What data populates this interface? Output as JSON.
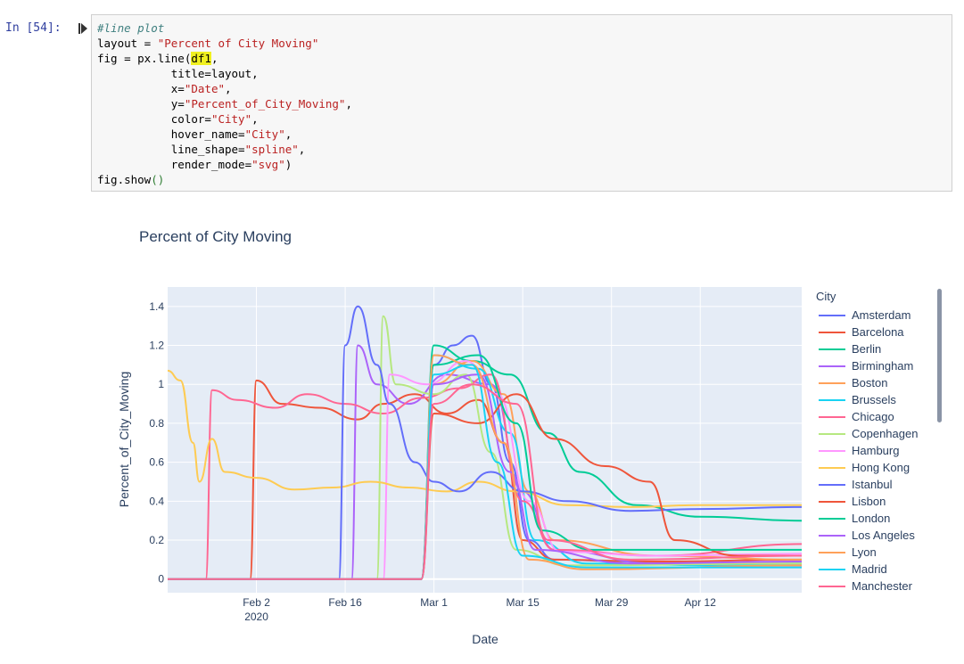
{
  "notebook": {
    "prompt": "In [54]:",
    "code": {
      "comment": "#line plot",
      "layout_var": "layout = ",
      "layout_str": "\"Percent of City Moving\"",
      "fig_prefix": "fig = px.line(",
      "df_name": "df1",
      "fig_suffix": ",",
      "l_title": "           title=layout,",
      "l_x_pre": "           x=",
      "l_x_val": "\"Date\"",
      "l_x_end": ",",
      "l_y_pre": "           y=",
      "l_y_val": "\"Percent_of_City_Moving\"",
      "l_y_end": ",",
      "l_color_pre": "           color=",
      "l_color_val": "\"City\"",
      "l_color_end": ",",
      "l_hover_pre": "           hover_name=",
      "l_hover_val": "\"City\"",
      "l_hover_end": ",",
      "l_shape_pre": "           line_shape=",
      "l_shape_val": "\"spline\"",
      "l_shape_end": ",",
      "l_render_pre": "           render_mode=",
      "l_render_val": "\"svg\"",
      "l_render_end": ")",
      "show_pre": "fig.show",
      "show_par": "()"
    }
  },
  "chart_data": {
    "type": "line",
    "title": "Percent of City Moving",
    "xlabel": "Date",
    "ylabel": "Percent_of_City_Moving",
    "ylim": [
      -0.07,
      1.5
    ],
    "y_ticks": [
      {
        "value": 0,
        "label": "0"
      },
      {
        "value": 0.2,
        "label": "0.2"
      },
      {
        "value": 0.4,
        "label": "0.4"
      },
      {
        "value": 0.6,
        "label": "0.6"
      },
      {
        "value": 0.8,
        "label": "0.8"
      },
      {
        "value": 1,
        "label": "1"
      },
      {
        "value": 1.2,
        "label": "1.2"
      },
      {
        "value": 1.4,
        "label": "1.4"
      }
    ],
    "x_start": "2020-01-19",
    "x_end": "2020-04-28",
    "x_ticks": [
      {
        "date": "2020-02-02",
        "label": "Feb 2",
        "sub": "2020"
      },
      {
        "date": "2020-02-16",
        "label": "Feb 16",
        "sub": ""
      },
      {
        "date": "2020-03-01",
        "label": "Mar 1",
        "sub": ""
      },
      {
        "date": "2020-03-15",
        "label": "Mar 15",
        "sub": ""
      },
      {
        "date": "2020-03-29",
        "label": "Mar 29",
        "sub": ""
      },
      {
        "date": "2020-04-12",
        "label": "Apr 12",
        "sub": ""
      }
    ],
    "legend_title": "City",
    "legend_position": "right",
    "series": [
      {
        "name": "Amsterdam",
        "color": "#636efa",
        "points": [
          [
            "2020-01-19",
            0
          ],
          [
            "2020-02-28",
            0
          ],
          [
            "2020-03-01",
            1.1
          ],
          [
            "2020-03-04",
            1.2
          ],
          [
            "2020-03-07",
            1.25
          ],
          [
            "2020-03-10",
            1.0
          ],
          [
            "2020-03-13",
            0.6
          ],
          [
            "2020-03-16",
            0.2
          ],
          [
            "2020-03-20",
            0.1
          ],
          [
            "2020-04-01",
            0.09
          ],
          [
            "2020-04-15",
            0.08
          ],
          [
            "2020-04-28",
            0.08
          ]
        ]
      },
      {
        "name": "Barcelona",
        "color": "#ef553b",
        "points": [
          [
            "2020-01-19",
            0
          ],
          [
            "2020-02-01",
            0
          ],
          [
            "2020-02-02",
            1.02
          ],
          [
            "2020-02-06",
            0.9
          ],
          [
            "2020-02-12",
            0.88
          ],
          [
            "2020-02-18",
            0.82
          ],
          [
            "2020-02-22",
            0.9
          ],
          [
            "2020-02-27",
            0.95
          ],
          [
            "2020-03-03",
            0.85
          ],
          [
            "2020-03-08",
            0.92
          ],
          [
            "2020-03-12",
            0.7
          ],
          [
            "2020-03-15",
            0.2
          ],
          [
            "2020-03-20",
            0.1
          ],
          [
            "2020-04-05",
            0.09
          ],
          [
            "2020-04-28",
            0.1
          ]
        ]
      },
      {
        "name": "Berlin",
        "color": "#00cc96",
        "points": [
          [
            "2020-01-19",
            0
          ],
          [
            "2020-02-28",
            0
          ],
          [
            "2020-03-01",
            1.2
          ],
          [
            "2020-03-07",
            1.12
          ],
          [
            "2020-03-13",
            1.05
          ],
          [
            "2020-03-19",
            0.75
          ],
          [
            "2020-03-24",
            0.55
          ],
          [
            "2020-04-02",
            0.38
          ],
          [
            "2020-04-12",
            0.32
          ],
          [
            "2020-04-28",
            0.3
          ]
        ]
      },
      {
        "name": "Birmingham",
        "color": "#ab63fa",
        "points": [
          [
            "2020-01-19",
            0
          ],
          [
            "2020-02-17",
            0
          ],
          [
            "2020-02-18",
            1.2
          ],
          [
            "2020-02-21",
            1.0
          ],
          [
            "2020-02-26",
            0.9
          ],
          [
            "2020-03-03",
            1.05
          ],
          [
            "2020-03-10",
            1.0
          ],
          [
            "2020-03-15",
            0.45
          ],
          [
            "2020-03-20",
            0.15
          ],
          [
            "2020-04-05",
            0.08
          ],
          [
            "2020-04-28",
            0.07
          ]
        ]
      },
      {
        "name": "Boston",
        "color": "#ffa15a",
        "points": [
          [
            "2020-01-19",
            0
          ],
          [
            "2020-02-28",
            0
          ],
          [
            "2020-03-01",
            1.0
          ],
          [
            "2020-03-07",
            1.12
          ],
          [
            "2020-03-12",
            0.95
          ],
          [
            "2020-03-16",
            0.45
          ],
          [
            "2020-03-20",
            0.2
          ],
          [
            "2020-04-05",
            0.12
          ],
          [
            "2020-04-28",
            0.1
          ]
        ]
      },
      {
        "name": "Brussels",
        "color": "#19d3f3",
        "points": [
          [
            "2020-01-19",
            0
          ],
          [
            "2020-02-28",
            0
          ],
          [
            "2020-03-01",
            1.15
          ],
          [
            "2020-03-08",
            1.08
          ],
          [
            "2020-03-13",
            0.75
          ],
          [
            "2020-03-17",
            0.2
          ],
          [
            "2020-03-25",
            0.08
          ],
          [
            "2020-04-15",
            0.07
          ],
          [
            "2020-04-28",
            0.08
          ]
        ]
      },
      {
        "name": "Chicago",
        "color": "#ff6692",
        "points": [
          [
            "2020-01-19",
            0
          ],
          [
            "2020-01-25",
            0
          ],
          [
            "2020-01-26",
            0.97
          ],
          [
            "2020-01-30",
            0.92
          ],
          [
            "2020-02-05",
            0.88
          ],
          [
            "2020-02-10",
            0.95
          ],
          [
            "2020-02-16",
            0.9
          ],
          [
            "2020-02-22",
            0.85
          ],
          [
            "2020-02-28",
            0.93
          ],
          [
            "2020-03-05",
            0.98
          ],
          [
            "2020-03-10",
            1.05
          ],
          [
            "2020-03-15",
            0.4
          ],
          [
            "2020-03-20",
            0.15
          ],
          [
            "2020-04-05",
            0.12
          ],
          [
            "2020-04-28",
            0.18
          ]
        ]
      },
      {
        "name": "Copenhagen",
        "color": "#b6e880",
        "points": [
          [
            "2020-01-19",
            0
          ],
          [
            "2020-02-21",
            0
          ],
          [
            "2020-02-22",
            1.35
          ],
          [
            "2020-02-24",
            1.0
          ],
          [
            "2020-03-01",
            0.95
          ],
          [
            "2020-03-06",
            1.05
          ],
          [
            "2020-03-10",
            0.65
          ],
          [
            "2020-03-14",
            0.15
          ],
          [
            "2020-03-22",
            0.07
          ],
          [
            "2020-04-28",
            0.08
          ]
        ]
      },
      {
        "name": "Hamburg",
        "color": "#ff97ff",
        "points": [
          [
            "2020-01-19",
            0
          ],
          [
            "2020-02-22",
            0
          ],
          [
            "2020-02-23",
            1.05
          ],
          [
            "2020-02-29",
            1.0
          ],
          [
            "2020-03-06",
            1.12
          ],
          [
            "2020-03-11",
            0.95
          ],
          [
            "2020-03-16",
            0.4
          ],
          [
            "2020-03-21",
            0.14
          ],
          [
            "2020-04-05",
            0.12
          ],
          [
            "2020-04-28",
            0.13
          ]
        ]
      },
      {
        "name": "Hong Kong",
        "color": "#fecb52",
        "points": [
          [
            "2020-01-19",
            1.07
          ],
          [
            "2020-01-21",
            1.02
          ],
          [
            "2020-01-23",
            0.7
          ],
          [
            "2020-01-24",
            0.5
          ],
          [
            "2020-01-26",
            0.72
          ],
          [
            "2020-01-28",
            0.55
          ],
          [
            "2020-02-02",
            0.52
          ],
          [
            "2020-02-08",
            0.46
          ],
          [
            "2020-02-14",
            0.47
          ],
          [
            "2020-02-20",
            0.5
          ],
          [
            "2020-02-26",
            0.47
          ],
          [
            "2020-03-03",
            0.45
          ],
          [
            "2020-03-08",
            0.5
          ],
          [
            "2020-03-14",
            0.45
          ],
          [
            "2020-03-22",
            0.38
          ],
          [
            "2020-04-01",
            0.37
          ],
          [
            "2020-04-12",
            0.38
          ],
          [
            "2020-04-28",
            0.38
          ]
        ]
      },
      {
        "name": "Istanbul",
        "color": "#636efa",
        "points": [
          [
            "2020-01-19",
            0
          ],
          [
            "2020-02-15",
            0
          ],
          [
            "2020-02-16",
            1.2
          ],
          [
            "2020-02-18",
            1.4
          ],
          [
            "2020-02-21",
            1.1
          ],
          [
            "2020-02-23",
            0.9
          ],
          [
            "2020-02-27",
            0.6
          ],
          [
            "2020-03-01",
            0.5
          ],
          [
            "2020-03-05",
            0.45
          ],
          [
            "2020-03-10",
            0.55
          ],
          [
            "2020-03-15",
            0.45
          ],
          [
            "2020-03-22",
            0.4
          ],
          [
            "2020-04-01",
            0.35
          ],
          [
            "2020-04-12",
            0.36
          ],
          [
            "2020-04-28",
            0.37
          ]
        ]
      },
      {
        "name": "Lisbon",
        "color": "#ef553b",
        "points": [
          [
            "2020-01-19",
            0
          ],
          [
            "2020-02-28",
            0
          ],
          [
            "2020-03-01",
            0.85
          ],
          [
            "2020-03-08",
            0.8
          ],
          [
            "2020-03-14",
            0.95
          ],
          [
            "2020-03-20",
            0.72
          ],
          [
            "2020-03-28",
            0.58
          ],
          [
            "2020-04-04",
            0.5
          ],
          [
            "2020-04-08",
            0.2
          ],
          [
            "2020-04-18",
            0.12
          ],
          [
            "2020-04-28",
            0.12
          ]
        ]
      },
      {
        "name": "London",
        "color": "#00cc96",
        "points": [
          [
            "2020-01-19",
            0
          ],
          [
            "2020-02-28",
            0
          ],
          [
            "2020-03-01",
            1.1
          ],
          [
            "2020-03-08",
            1.15
          ],
          [
            "2020-03-14",
            0.8
          ],
          [
            "2020-03-18",
            0.25
          ],
          [
            "2020-03-26",
            0.15
          ],
          [
            "2020-04-12",
            0.15
          ],
          [
            "2020-04-28",
            0.15
          ]
        ]
      },
      {
        "name": "Los Angeles",
        "color": "#ab63fa",
        "points": [
          [
            "2020-01-19",
            0
          ],
          [
            "2020-02-28",
            0
          ],
          [
            "2020-03-01",
            1.0
          ],
          [
            "2020-03-08",
            1.05
          ],
          [
            "2020-03-13",
            0.55
          ],
          [
            "2020-03-17",
            0.15
          ],
          [
            "2020-04-01",
            0.08
          ],
          [
            "2020-04-28",
            0.09
          ]
        ]
      },
      {
        "name": "Lyon",
        "color": "#ffa15a",
        "points": [
          [
            "2020-01-19",
            0
          ],
          [
            "2020-02-28",
            0
          ],
          [
            "2020-03-01",
            1.15
          ],
          [
            "2020-03-07",
            1.1
          ],
          [
            "2020-03-12",
            0.7
          ],
          [
            "2020-03-16",
            0.1
          ],
          [
            "2020-03-25",
            0.05
          ],
          [
            "2020-04-28",
            0.07
          ]
        ]
      },
      {
        "name": "Madrid",
        "color": "#19d3f3",
        "points": [
          [
            "2020-01-19",
            0
          ],
          [
            "2020-02-28",
            0
          ],
          [
            "2020-03-01",
            1.05
          ],
          [
            "2020-03-07",
            1.1
          ],
          [
            "2020-03-11",
            0.6
          ],
          [
            "2020-03-15",
            0.12
          ],
          [
            "2020-03-25",
            0.06
          ],
          [
            "2020-04-28",
            0.06
          ]
        ]
      },
      {
        "name": "Manchester",
        "color": "#ff6692",
        "points": [
          [
            "2020-01-19",
            0
          ],
          [
            "2020-02-28",
            0
          ],
          [
            "2020-03-01",
            0.9
          ],
          [
            "2020-03-07",
            1.0
          ],
          [
            "2020-03-14",
            0.9
          ],
          [
            "2020-03-19",
            0.2
          ],
          [
            "2020-04-01",
            0.1
          ],
          [
            "2020-04-28",
            0.12
          ]
        ]
      }
    ]
  }
}
